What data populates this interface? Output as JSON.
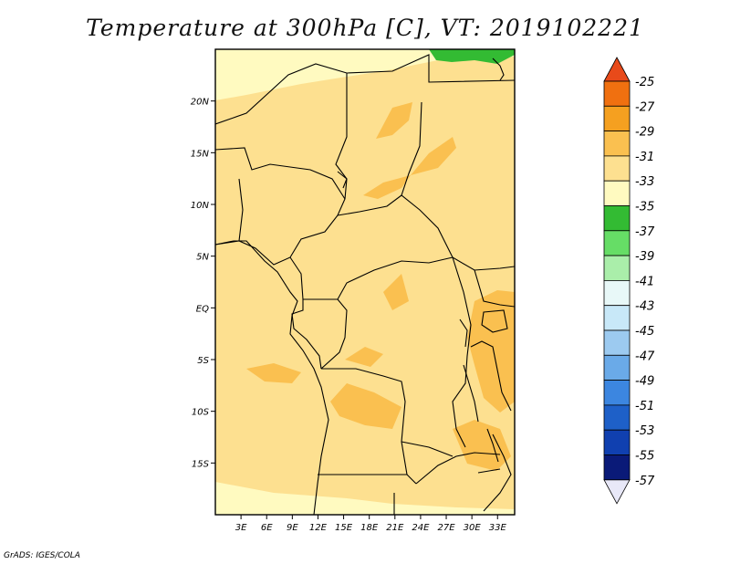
{
  "title": "Temperature at 300hPa [C], VT: 2019102221",
  "credit": "GrADS: IGES/COLA",
  "map": {
    "lon_range": [
      0,
      35
    ],
    "lat_range": [
      -20,
      25
    ],
    "lon_ticks": [
      "3E",
      "6E",
      "9E",
      "12E",
      "15E",
      "18E",
      "21E",
      "24E",
      "27E",
      "30E",
      "33E"
    ],
    "lat_ticks": [
      "20N",
      "15N",
      "10N",
      "5N",
      "EQ",
      "5S",
      "10S",
      "15S"
    ]
  },
  "colorbar": {
    "labels": [
      "-25",
      "-27",
      "-29",
      "-31",
      "-33",
      "-35",
      "-37",
      "-39",
      "-41",
      "-43",
      "-45",
      "-47",
      "-49",
      "-51",
      "-53",
      "-55",
      "-57"
    ],
    "colors": [
      "#e84a1a",
      "#f07010",
      "#f5a020",
      "#fac050",
      "#fde090",
      "#fffac0",
      "#33bb33",
      "#66dd66",
      "#aaeeaa",
      "#e8f8f8",
      "#c8e8f8",
      "#9ccaf0",
      "#6aaae8",
      "#3c86e0",
      "#1e60c8",
      "#1040b0",
      "#0a1a78",
      "#e8e8f8"
    ]
  },
  "legend": {
    "value_colors": {
      "-31 to -29": "#fac050",
      "-33 to -31": "#fde090",
      "-35 to -33": "#fffac0",
      "-37 to -35": "#33bb33"
    }
  }
}
